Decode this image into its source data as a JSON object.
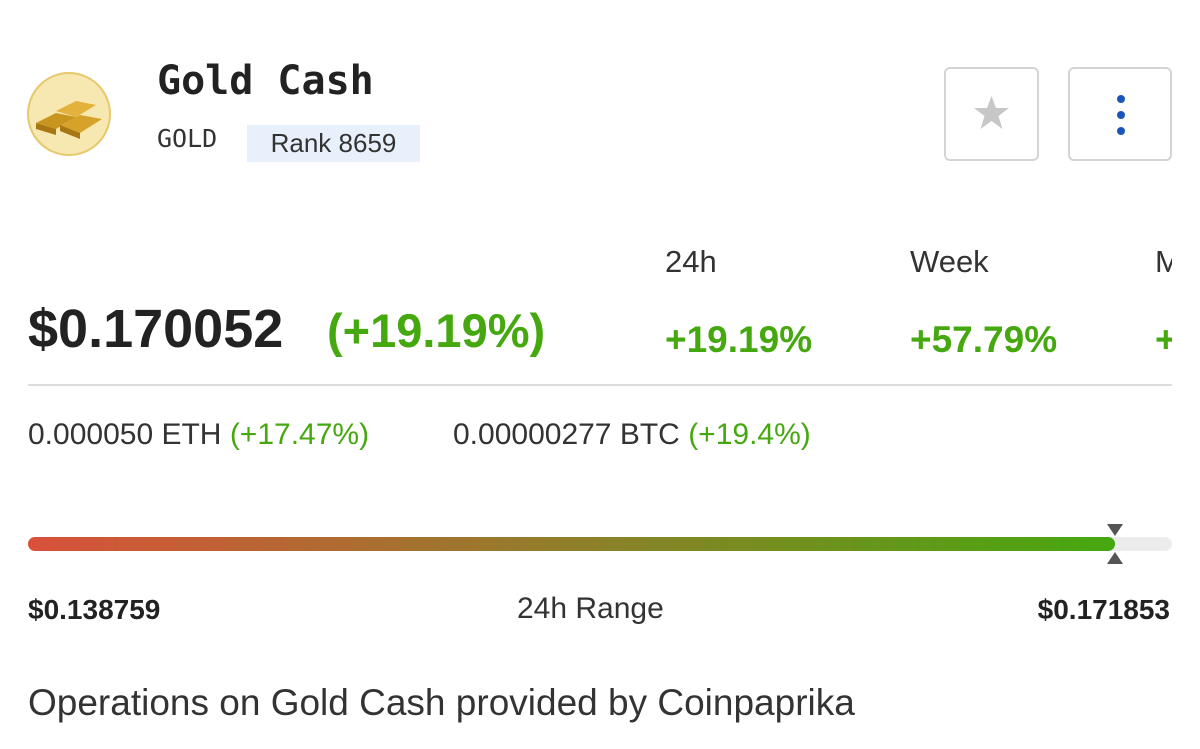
{
  "header": {
    "name": "Gold Cash",
    "symbol": "GOLD",
    "rank": "Rank 8659"
  },
  "price": {
    "value": "$0.170052",
    "change": "(+19.19%)"
  },
  "periods": [
    {
      "label": "24h",
      "value": "+19.19%"
    },
    {
      "label": "Week",
      "value": "+57.79%"
    },
    {
      "label": "M",
      "value": "+"
    }
  ],
  "conversions": [
    {
      "amount": "0.000050 ETH",
      "change": "(+17.47%)"
    },
    {
      "amount": "0.00000277 BTC",
      "change": "(+19.4%)"
    }
  ],
  "range": {
    "low": "$0.138759",
    "label": "24h Range",
    "high": "$0.171853"
  },
  "footer": "Operations on Gold Cash provided by Coinpaprika"
}
